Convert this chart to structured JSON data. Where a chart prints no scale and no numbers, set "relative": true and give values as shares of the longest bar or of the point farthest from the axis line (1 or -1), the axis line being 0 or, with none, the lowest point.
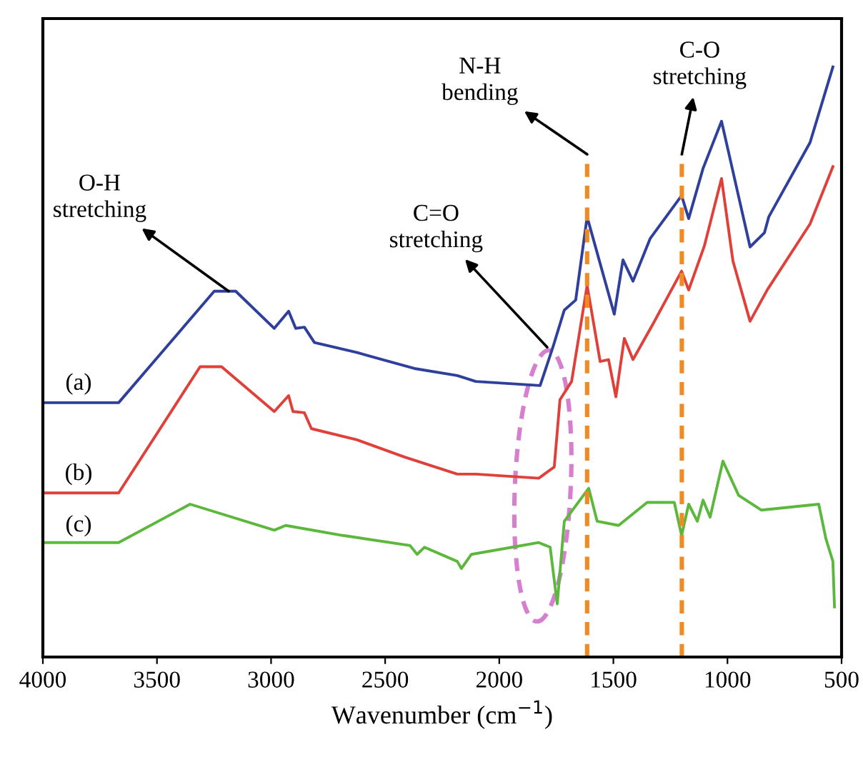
{
  "chart_data": {
    "type": "line",
    "xlabel": "Wavenumber (cm$^{−1}$)",
    "relative": true,
    "xlim": [
      4000,
      500
    ],
    "xticks": [
      4000,
      3500,
      3000,
      2500,
      2000,
      1500,
      1000,
      500
    ],
    "line_style": "solid",
    "marker": "none",
    "grid": false,
    "series": [
      {
        "name": "(a)",
        "color": "#2e3f9c",
        "x": [
          4000,
          3668,
          3249,
          3155,
          2986,
          2923,
          2892,
          2854,
          2810,
          2623,
          2372,
          2184,
          2103,
          1821,
          1765,
          1715,
          1665,
          1615,
          1496,
          1458,
          1414,
          1339,
          1201,
          1170,
          1107,
          1026,
          901,
          838,
          819,
          638,
          538
        ],
        "values": [
          0.431,
          0.431,
          0.62,
          0.62,
          0.557,
          0.586,
          0.557,
          0.559,
          0.533,
          0.516,
          0.489,
          0.477,
          0.467,
          0.46,
          0.525,
          0.588,
          0.605,
          0.746,
          0.581,
          0.673,
          0.637,
          0.709,
          0.782,
          0.743,
          0.828,
          0.908,
          0.695,
          0.719,
          0.746,
          0.872,
          1.0
        ]
      },
      {
        "name": "(b)",
        "color": "#e0403a",
        "x": [
          4000,
          3668,
          3311,
          3217,
          2986,
          2923,
          2904,
          2854,
          2823,
          2623,
          2416,
          2184,
          2103,
          1827,
          1759,
          1734,
          1683,
          1615,
          1558,
          1521,
          1489,
          1452,
          1414,
          1327,
          1201,
          1170,
          1101,
          1026,
          976,
          901,
          826,
          638,
          538
        ],
        "values": [
          0.278,
          0.278,
          0.492,
          0.492,
          0.416,
          0.443,
          0.416,
          0.414,
          0.387,
          0.368,
          0.339,
          0.31,
          0.31,
          0.303,
          0.322,
          0.436,
          0.467,
          0.63,
          0.501,
          0.504,
          0.441,
          0.54,
          0.504,
          0.564,
          0.654,
          0.622,
          0.697,
          0.811,
          0.671,
          0.569,
          0.622,
          0.734,
          0.831
        ]
      },
      {
        "name": "(c)",
        "color": "#5cb83c",
        "x": [
          4000,
          3668,
          3355,
          2986,
          2936,
          2685,
          2391,
          2360,
          2328,
          2184,
          2166,
          2122,
          1827,
          1777,
          1746,
          1715,
          1608,
          1571,
          1477,
          1352,
          1233,
          1201,
          1170,
          1132,
          1107,
          1076,
          1020,
          951,
          851,
          600,
          569,
          538,
          531
        ],
        "values": [
          0.194,
          0.194,
          0.259,
          0.215,
          0.223,
          0.206,
          0.189,
          0.174,
          0.186,
          0.162,
          0.15,
          0.174,
          0.194,
          0.186,
          0.09,
          0.23,
          0.286,
          0.23,
          0.223,
          0.262,
          0.262,
          0.206,
          0.259,
          0.23,
          0.266,
          0.237,
          0.332,
          0.274,
          0.249,
          0.259,
          0.201,
          0.162,
          0.085
        ]
      }
    ],
    "ref_lines": [
      {
        "axis": "x",
        "value": 1615,
        "color": "#f08a24",
        "line_style": "dashed"
      },
      {
        "axis": "x",
        "value": 1200,
        "color": "#f08a24",
        "line_style": "dashed"
      }
    ],
    "annotations": [
      {
        "text": "O-H\nstretching",
        "x": 3186,
        "y": 0.62
      },
      {
        "text": "N-H\nbending",
        "x": 1615,
        "y": 0.852
      },
      {
        "text": "C-O\nstretching",
        "x": 1200,
        "y": 0.852
      },
      {
        "text": "C=O\nstretching",
        "x": 1790,
        "y": 0.525
      }
    ]
  }
}
